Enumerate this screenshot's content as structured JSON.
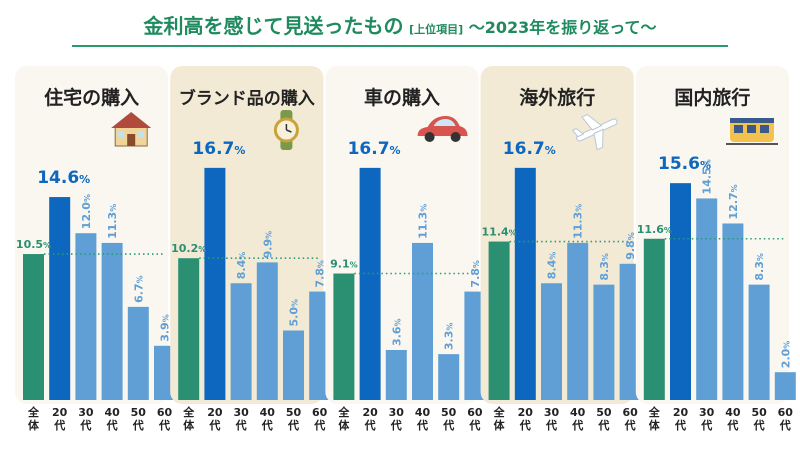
{
  "title": {
    "main": "金利高を感じて見送ったもの",
    "tag": "[上位項目]",
    "sub": "〜2023年を振り返って〜"
  },
  "colors": {
    "title_text": "#1f8a5f",
    "title_line": "#2c9a6c",
    "overall": "#2b8f72",
    "twenties": "#0d67be",
    "others": "#5f9fd6",
    "panel_shaded": "#f3ead5",
    "panel_plain": "#faf7f1",
    "avg_line": "#2b9a78",
    "value_text": "#5f9fd6",
    "highlight_text": "#0d67be",
    "overall_text": "#2b8f72",
    "category_text": "#222222",
    "axis_text": "#222222"
  },
  "chart_data": {
    "type": "bar",
    "unit": "%",
    "ylim": [
      0,
      20
    ],
    "age_groups": [
      "全体",
      "20代",
      "30代",
      "40代",
      "50代",
      "60代"
    ],
    "age_labels": [
      [
        "全",
        "体"
      ],
      [
        "20",
        "代"
      ],
      [
        "30",
        "代"
      ],
      [
        "40",
        "代"
      ],
      [
        "50",
        "代"
      ],
      [
        "60",
        "代"
      ]
    ],
    "panels": [
      {
        "category": "住宅の購入",
        "icon": "house-icon",
        "shaded": false,
        "values": [
          10.5,
          14.6,
          12.0,
          11.3,
          6.7,
          3.9
        ]
      },
      {
        "category": "ブランド品の購入",
        "icon": "watch-icon",
        "shaded": true,
        "values": [
          10.2,
          16.7,
          8.4,
          9.9,
          5.0,
          7.8
        ]
      },
      {
        "category": "車の購入",
        "icon": "car-icon",
        "shaded": false,
        "values": [
          9.1,
          16.7,
          3.6,
          11.3,
          3.3,
          7.8
        ]
      },
      {
        "category": "海外旅行",
        "icon": "airplane-icon",
        "shaded": true,
        "values": [
          11.4,
          16.7,
          8.4,
          11.3,
          8.3,
          9.8
        ]
      },
      {
        "category": "国内旅行",
        "icon": "train-icon",
        "shaded": false,
        "values": [
          11.6,
          15.6,
          14.5,
          12.7,
          8.3,
          2.0
        ]
      }
    ]
  }
}
